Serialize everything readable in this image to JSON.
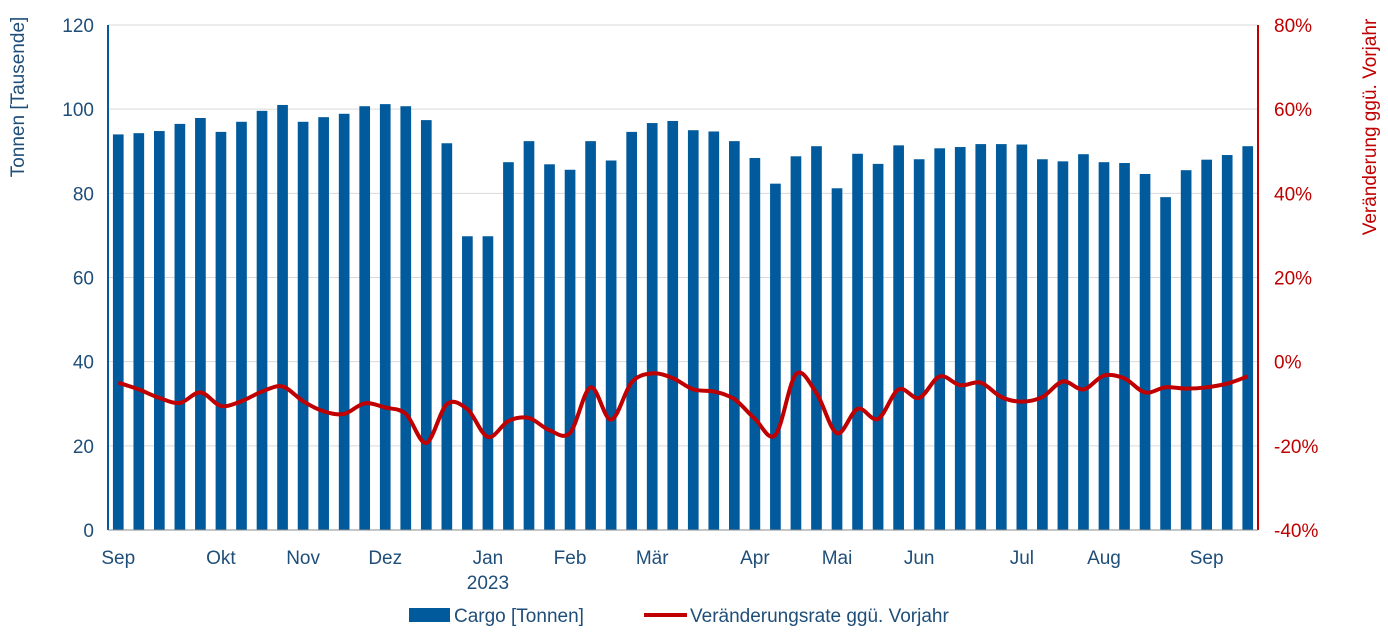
{
  "chart_data": {
    "type": "bar",
    "colors": {
      "bars": "#005a9c",
      "line": "#c00000",
      "left_axis_text": "#1f4e79",
      "right_axis_text": "#c00000",
      "grid": "#d9d9d9"
    },
    "grid": true,
    "legend_position": "bottom-center",
    "ylabel": "Tonnen [Tausende]",
    "y2label": "Veränderung ggü. Vorjahr",
    "ylim": [
      0,
      120
    ],
    "y2lim": [
      -40,
      80
    ],
    "y_ticks": [
      "0",
      "20",
      "40",
      "60",
      "80",
      "100",
      "120"
    ],
    "y2_ticks": [
      "-40%",
      "-20%",
      "0%",
      "20%",
      "40%",
      "60%",
      "80%"
    ],
    "x_labels": [
      {
        "index": 0,
        "label": "Sep"
      },
      {
        "index": 5,
        "label": "Okt"
      },
      {
        "index": 9,
        "label": "Nov"
      },
      {
        "index": 13,
        "label": "Dez"
      },
      {
        "index": 18,
        "label": "Jan"
      },
      {
        "index": 18,
        "label": "2023",
        "line": 2
      },
      {
        "index": 22,
        "label": "Feb"
      },
      {
        "index": 26,
        "label": "Mär"
      },
      {
        "index": 31,
        "label": "Apr"
      },
      {
        "index": 35,
        "label": "Mai"
      },
      {
        "index": 39,
        "label": "Jun"
      },
      {
        "index": 44,
        "label": "Jul"
      },
      {
        "index": 48,
        "label": "Aug"
      },
      {
        "index": 53,
        "label": "Sep"
      }
    ],
    "series": [
      {
        "name": "Cargo [Tonnen]",
        "axis": "left",
        "type": "bar",
        "values": [
          94.0,
          94.3,
          94.8,
          96.5,
          97.9,
          94.6,
          97.0,
          99.6,
          101.0,
          97.0,
          98.1,
          98.9,
          100.7,
          101.2,
          100.7,
          97.4,
          91.9,
          69.8,
          69.8,
          87.4,
          92.4,
          86.9,
          85.6,
          92.4,
          87.8,
          94.6,
          96.7,
          97.2,
          95.0,
          94.7,
          92.4,
          88.4,
          82.3,
          88.8,
          91.2,
          81.2,
          89.4,
          87.0,
          91.4,
          88.1,
          90.7,
          91.0,
          91.7,
          91.7,
          91.6,
          88.1,
          87.6,
          89.3,
          87.4,
          87.2,
          84.6,
          79.1,
          85.5,
          88.0,
          89.1,
          91.2
        ]
      },
      {
        "name": "Veränderungsrate ggü. Vorjahr",
        "axis": "right",
        "type": "line",
        "values": [
          -5.0,
          -6.6,
          -8.6,
          -9.8,
          -7.3,
          -10.5,
          -9.4,
          -7.1,
          -5.9,
          -9.4,
          -11.8,
          -12.4,
          -9.9,
          -10.9,
          -12.4,
          -19.3,
          -10.1,
          -11.3,
          -17.9,
          -14.1,
          -13.4,
          -16.3,
          -16.9,
          -6.1,
          -13.8,
          -4.9,
          -2.8,
          -3.9,
          -6.6,
          -7.1,
          -8.9,
          -13.6,
          -17.4,
          -3.0,
          -7.5,
          -17.0,
          -11.2,
          -13.6,
          -6.6,
          -8.6,
          -3.5,
          -5.6,
          -5.0,
          -8.4,
          -9.5,
          -8.4,
          -4.7,
          -6.6,
          -3.3,
          -4.0,
          -7.3,
          -6.1,
          -6.4,
          -6.1,
          -5.2,
          -3.5
        ]
      }
    ]
  }
}
